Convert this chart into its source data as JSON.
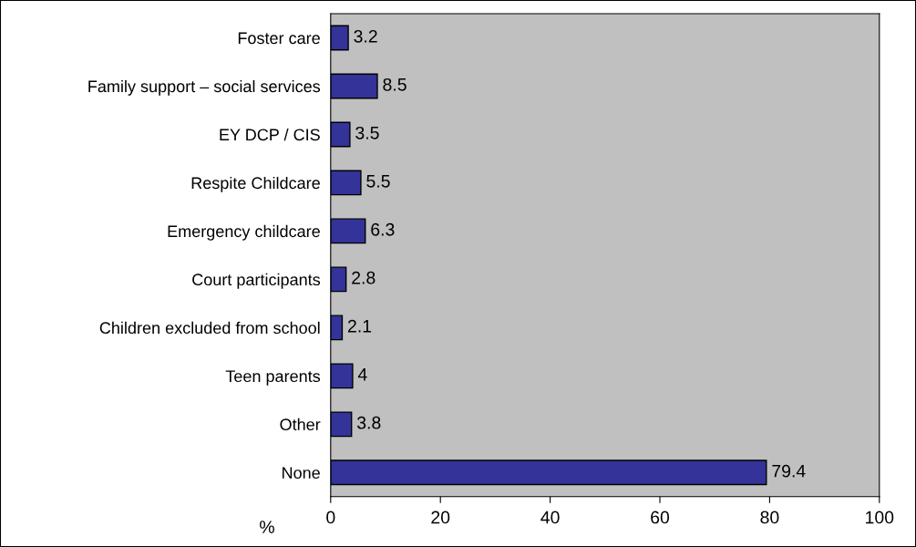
{
  "chart_data": {
    "type": "bar",
    "orientation": "horizontal",
    "xlabel": "%",
    "categories": [
      "Foster care",
      "Family support – social services",
      "EY DCP / CIS",
      "Respite Childcare",
      "Emergency childcare",
      "Court participants",
      "Children excluded from school",
      "Teen parents",
      "Other",
      "None"
    ],
    "values": [
      3.2,
      8.5,
      3.5,
      5.5,
      6.3,
      2.8,
      2.1,
      4,
      3.8,
      79.4
    ],
    "color": "#333399",
    "data_labels": true,
    "grid": false,
    "xlim": [
      0,
      100
    ],
    "xticks": [
      0,
      20,
      40,
      60,
      80,
      100
    ]
  }
}
